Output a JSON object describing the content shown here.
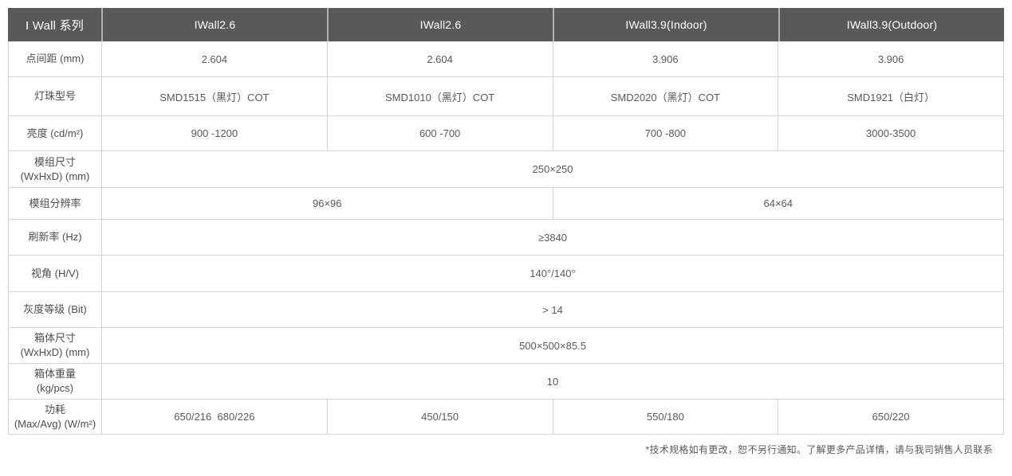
{
  "table": {
    "header": {
      "series_label": "I Wall 系列",
      "columns": [
        "IWall2.6",
        "IWall2.6",
        "IWall3.9(Indoor)",
        "IWall3.9(Outdoor)"
      ]
    },
    "rows": [
      {
        "label": "点间距 (mm)",
        "values": [
          "2.604",
          "2.604",
          "3.906",
          "3.906"
        ]
      },
      {
        "label": "灯珠型号",
        "values": [
          "SMD1515（黑灯）COT",
          "SMD1010（黑灯）COT",
          "SMD2020（黑灯）COT",
          "SMD1921（白灯）"
        ]
      },
      {
        "label": "亮度 (cd/m²)",
        "values": [
          "900 -1200",
          "600 -700",
          "700 -800",
          "3000-3500"
        ]
      },
      {
        "label": "模组尺寸\n(WxHxD) (mm)",
        "span": 4,
        "values": [
          "250×250"
        ]
      },
      {
        "label": "模组分辨率",
        "span": 2,
        "values": [
          "96×96",
          "64×64"
        ]
      },
      {
        "label": "刷新率 (Hz)",
        "span": 4,
        "values": [
          "≥3840"
        ]
      },
      {
        "label": "视角 (H/V)",
        "span": 4,
        "values": [
          "140°/140°"
        ]
      },
      {
        "label": "灰度等级 (Bit)",
        "span": 4,
        "values": [
          "> 14"
        ]
      },
      {
        "label": "箱体尺寸\n(WxHxD) (mm)",
        "span": 4,
        "values": [
          "500×500×85.5"
        ]
      },
      {
        "label": "箱体重量\n(kg/pcs)",
        "span": 4,
        "values": [
          "10"
        ]
      },
      {
        "label": "功耗\n(Max/Avg) (W/m²)",
        "values": [
          "650/216  680/226",
          "450/150",
          "550/180",
          "650/220"
        ]
      }
    ],
    "footnote": "*技术规格如有更改，恕不另行通知。了解更多产品详情，请与我司销售人员联系",
    "colors": {
      "header_bg": "#58595b",
      "header_text": "#ffffff",
      "border": "#d3d3d3",
      "body_text": "#595959"
    }
  }
}
